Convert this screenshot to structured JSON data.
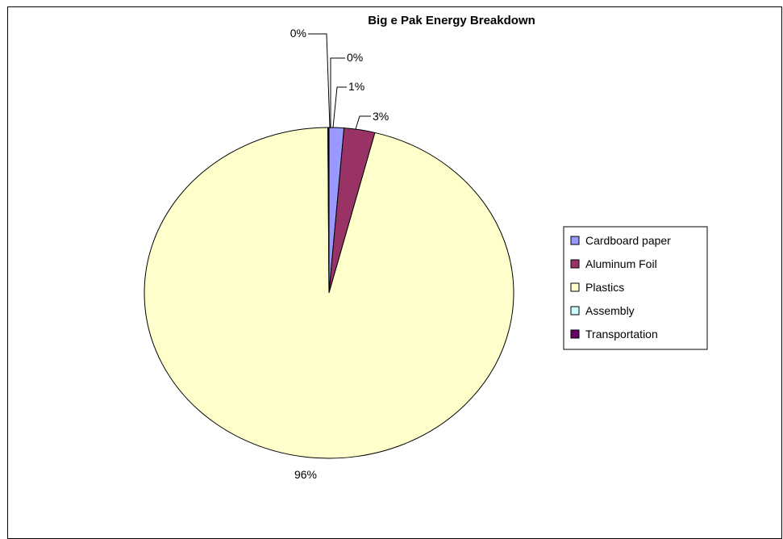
{
  "chart_data": {
    "type": "pie",
    "title": "Big e Pak Energy Breakdown",
    "categories": [
      "Cardboard paper",
      "Aluminum Foil",
      "Plastics",
      "Assembly",
      "Transportation"
    ],
    "values": [
      1.3,
      2.7,
      95.9,
      0.05,
      0.05
    ],
    "data_labels": [
      "1%",
      "3%",
      "96%",
      "0%",
      "0%"
    ],
    "colors": [
      "#9999ff",
      "#993366",
      "#ffffcc",
      "#ccffff",
      "#660066"
    ],
    "legend_position": "right",
    "start_angle_deg": 0,
    "direction": "clockwise"
  }
}
